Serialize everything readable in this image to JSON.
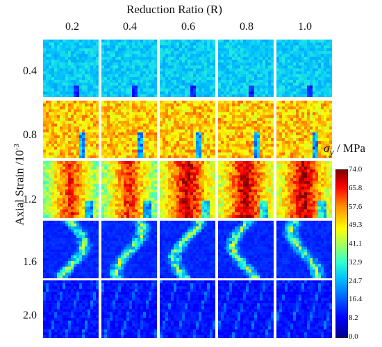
{
  "figure": {
    "column_title": "Reduction Ratio (R)",
    "row_title": "Axial Strain /10",
    "row_title_exp": "-3",
    "columns": [
      "0.2",
      "0.4",
      "0.6",
      "0.8",
      "1.0"
    ],
    "rows": [
      "0.4",
      "0.8",
      "1.2",
      "1.6",
      "2.0"
    ],
    "colorbar": {
      "title_symbol": "σ",
      "title_sub": "y",
      "title_unit": " / MPa",
      "ticks": [
        "74.0",
        "65.8",
        "57.6",
        "49.3",
        "41.1",
        "32.9",
        "24.7",
        "16.4",
        "8.2",
        "0.0"
      ],
      "colormap": "jet"
    }
  }
}
